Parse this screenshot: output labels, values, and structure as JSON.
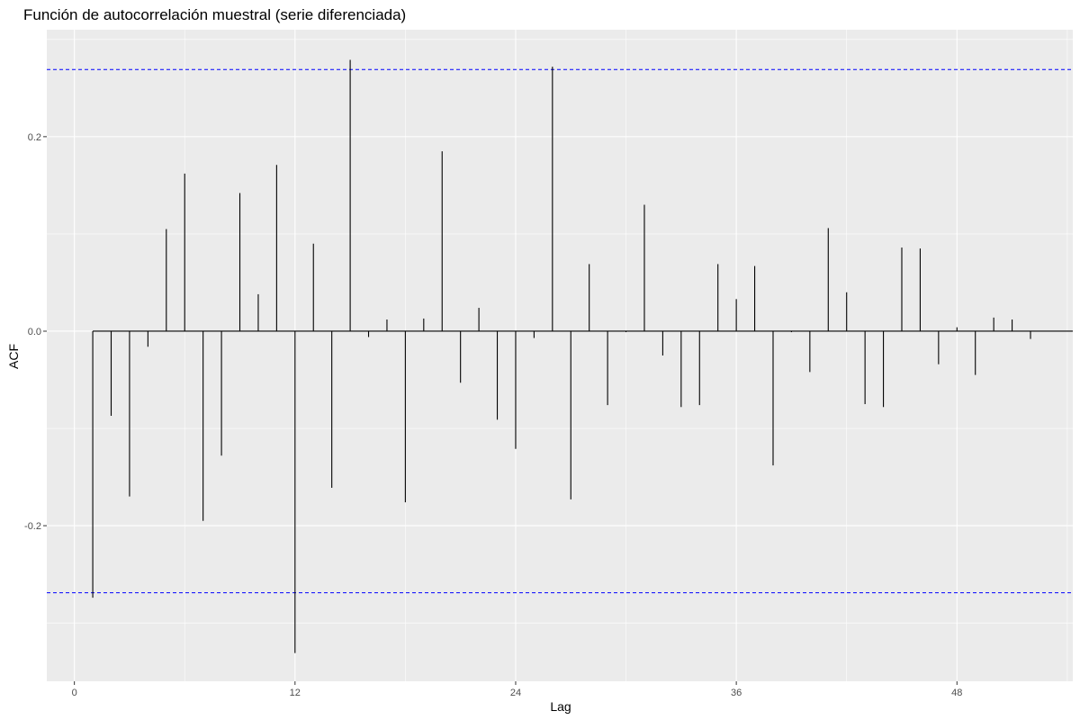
{
  "chart_data": {
    "type": "bar",
    "title": "Función de autocorrelación muestral (serie diferenciada)",
    "xlabel": "Lag",
    "ylabel": "ACF",
    "xlim": [
      -1.5,
      54.3
    ],
    "ylim": [
      -0.36,
      0.31
    ],
    "x_ticks": [
      0,
      12,
      24,
      36,
      48
    ],
    "x_tick_labels": [
      "0",
      "12",
      "24",
      "36",
      "48"
    ],
    "y_ticks": [
      -0.2,
      0.0,
      0.2
    ],
    "y_tick_labels": [
      "-0.2",
      "0.0",
      "0.2"
    ],
    "grid": true,
    "confidence_band": [
      -0.269,
      0.269
    ],
    "colors": {
      "panel": "#ebebeb",
      "grid_major": "#ffffff",
      "bar": "#000000",
      "zero_line": "#000000",
      "band": "#0000ff"
    },
    "lags": [
      1,
      2,
      3,
      4,
      5,
      6,
      7,
      8,
      9,
      10,
      11,
      12,
      13,
      14,
      15,
      16,
      17,
      18,
      19,
      20,
      21,
      22,
      23,
      24,
      25,
      26,
      27,
      28,
      29,
      30,
      31,
      32,
      33,
      34,
      35,
      36,
      37,
      38,
      39,
      40,
      41,
      42,
      43,
      44,
      45,
      46,
      47,
      48,
      49,
      50,
      51,
      52
    ],
    "values": [
      -0.274,
      -0.087,
      -0.17,
      -0.016,
      0.105,
      0.162,
      -0.195,
      -0.128,
      0.142,
      0.038,
      0.171,
      -0.331,
      0.09,
      -0.161,
      0.279,
      -0.006,
      0.012,
      -0.176,
      0.013,
      0.185,
      -0.053,
      0.024,
      -0.091,
      -0.121,
      -0.007,
      0.272,
      -0.173,
      0.069,
      -0.076,
      -0.001,
      0.13,
      -0.025,
      -0.078,
      -0.076,
      0.069,
      0.033,
      0.067,
      -0.138,
      -0.001,
      -0.042,
      0.106,
      0.04,
      -0.075,
      -0.078,
      0.086,
      0.085,
      -0.034,
      0.004,
      -0.045,
      0.014,
      0.012,
      -0.008
    ]
  }
}
